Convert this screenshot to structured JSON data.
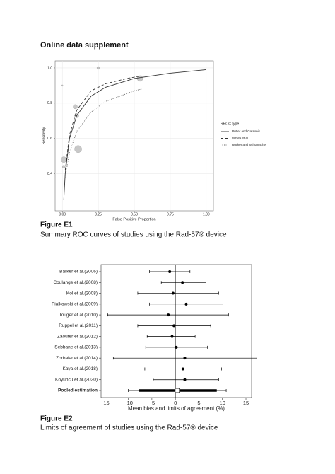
{
  "header": {
    "title": "Online data supplement"
  },
  "figures": [
    {
      "label": "Figure E1",
      "caption": "Summary ROC curves of studies using the Rad-57® device"
    },
    {
      "label": "Figure E2",
      "caption": "Limits of agreement of studies using the Rad-57® device"
    }
  ],
  "chart_data": [
    {
      "type": "line",
      "x_label": "False Positive Proportion",
      "y_label": "Sensitivity",
      "xlim": [
        -0.05,
        1.05
      ],
      "ylim": [
        0.19,
        1.04
      ],
      "xticks": [
        {
          "value": 0,
          "label": "0.00"
        },
        0.25,
        {
          "value": 0.5,
          "label": "0.50"
        },
        0.75,
        {
          "value": 1,
          "label": "1.00"
        }
      ],
      "yticks": [
        0.4,
        0.6,
        0.8,
        {
          "value": 1,
          "label": "1.0"
        }
      ],
      "grid": true,
      "legend_title": "SROC type",
      "legend_position": "right",
      "series": [
        {
          "name": "Rutter and Gatsonis",
          "color": "#333333",
          "dash": "solid",
          "x": [
            0.01,
            0.02,
            0.05,
            0.1,
            0.2,
            0.3,
            0.5,
            0.75,
            1.0
          ],
          "values": [
            0.25,
            0.4,
            0.6,
            0.73,
            0.84,
            0.89,
            0.94,
            0.97,
            0.99
          ]
        },
        {
          "name": "Moses et al.",
          "color": "#333333",
          "dash": "dashed",
          "x": [
            0.02,
            0.05,
            0.1,
            0.2,
            0.3,
            0.45,
            0.55
          ],
          "values": [
            0.42,
            0.62,
            0.76,
            0.87,
            0.91,
            0.94,
            0.955
          ]
        },
        {
          "name": "Rücker and Schumacher",
          "color": "#666666",
          "dash": "dotted",
          "x": [
            0.02,
            0.05,
            0.1,
            0.2,
            0.3,
            0.5,
            0.55
          ],
          "values": [
            0.38,
            0.52,
            0.64,
            0.75,
            0.81,
            0.87,
            0.88
          ]
        }
      ],
      "points": {
        "color": "#b0b0b0",
        "x": [
          0.0,
          0.25,
          0.54,
          0.09,
          0.1,
          0.11,
          0.01,
          0.01
        ],
        "values": [
          0.9,
          1.0,
          0.94,
          0.78,
          0.73,
          0.54,
          0.48,
          0.44
        ],
        "sizes": [
          1,
          2,
          4,
          3,
          3,
          5,
          4,
          2
        ]
      }
    },
    {
      "type": "forest",
      "x_label": "Mean bias and limits of agreement (%)",
      "xlim": [
        -15.8,
        16.2
      ],
      "xticks": [
        {
          "value": -15,
          "label": "−15"
        },
        {
          "value": -10,
          "label": "−10"
        },
        {
          "value": -5,
          "label": "−5"
        },
        0,
        5,
        10,
        15
      ],
      "reference_line": 0,
      "color": "#000000",
      "categories": [
        "Barker et al.(2006)",
        "Coulange et al.(2008)",
        "Kol et al.(2008)",
        "Pialkowski et al.(2009)",
        "Touger et al.(2010)",
        "Ruppel et al.(2011)",
        "Zaouter et al.(2012)",
        "Sebbane et al.(2013)",
        "Zorbalar et al.(2014)",
        "Kaya et al.(2018)",
        "Koyuncu et al.(2020)",
        "Pooled estimation"
      ],
      "values": [
        -1.2,
        1.5,
        -0.5,
        2.3,
        -1.5,
        -0.3,
        -0.7,
        0.2,
        2.0,
        1.6,
        2.0,
        0.4
      ],
      "lower": [
        -5.5,
        -3.0,
        -8.0,
        -5.5,
        -14.4,
        -8.0,
        -6.0,
        -6.3,
        -13.2,
        -6.5,
        -4.7,
        -10.0
      ],
      "upper": [
        3.1,
        6.5,
        9.2,
        10.1,
        11.3,
        7.5,
        4.2,
        6.8,
        17.3,
        9.8,
        9.2,
        10.8
      ],
      "pooled_inner_range": [
        -7.8,
        8.8
      ]
    }
  ]
}
